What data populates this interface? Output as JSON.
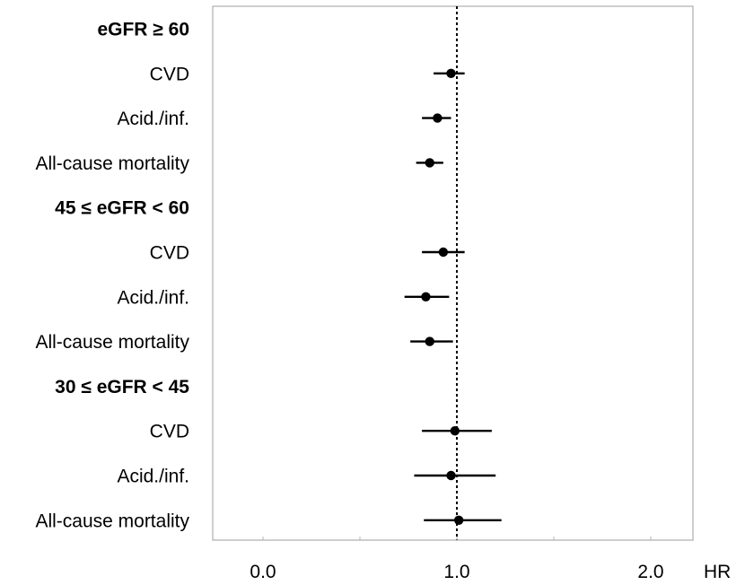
{
  "chart_data": {
    "type": "forest",
    "xlim": [
      -0.25,
      2.25
    ],
    "reference_line": 1.0,
    "x_ticks": [
      {
        "value": 0.0,
        "label": "0.0"
      },
      {
        "value": 1.0,
        "label": "1.0"
      },
      {
        "value": 2.0,
        "label": "2.0"
      }
    ],
    "minor_ticks": [
      0.5,
      1.5
    ],
    "xlabel": "HR",
    "rows": [
      {
        "label": "eGFR ≥ 60",
        "header": true
      },
      {
        "label": "CVD",
        "header": false,
        "hr": 0.97,
        "lo": 0.88,
        "hi": 1.04
      },
      {
        "label": "Acid./inf.",
        "header": false,
        "hr": 0.9,
        "lo": 0.82,
        "hi": 0.97
      },
      {
        "label": "All-cause mortality",
        "header": false,
        "hr": 0.86,
        "lo": 0.79,
        "hi": 0.93
      },
      {
        "label": "45 ≤ eGFR < 60",
        "header": true
      },
      {
        "label": "CVD",
        "header": false,
        "hr": 0.93,
        "lo": 0.82,
        "hi": 1.04
      },
      {
        "label": "Acid./inf.",
        "header": false,
        "hr": 0.84,
        "lo": 0.73,
        "hi": 0.96
      },
      {
        "label": "All-cause mortality",
        "header": false,
        "hr": 0.86,
        "lo": 0.76,
        "hi": 0.98
      },
      {
        "label": "30 ≤ eGFR < 45",
        "header": true
      },
      {
        "label": "CVD",
        "header": false,
        "hr": 0.99,
        "lo": 0.82,
        "hi": 1.18
      },
      {
        "label": "Acid./inf.",
        "header": false,
        "hr": 0.97,
        "lo": 0.78,
        "hi": 1.2
      },
      {
        "label": "All-cause mortality",
        "header": false,
        "hr": 1.01,
        "lo": 0.83,
        "hi": 1.23
      }
    ],
    "colors": {
      "marker": "#000000",
      "frame": "#b3b3b3",
      "reference": "#000000"
    }
  }
}
